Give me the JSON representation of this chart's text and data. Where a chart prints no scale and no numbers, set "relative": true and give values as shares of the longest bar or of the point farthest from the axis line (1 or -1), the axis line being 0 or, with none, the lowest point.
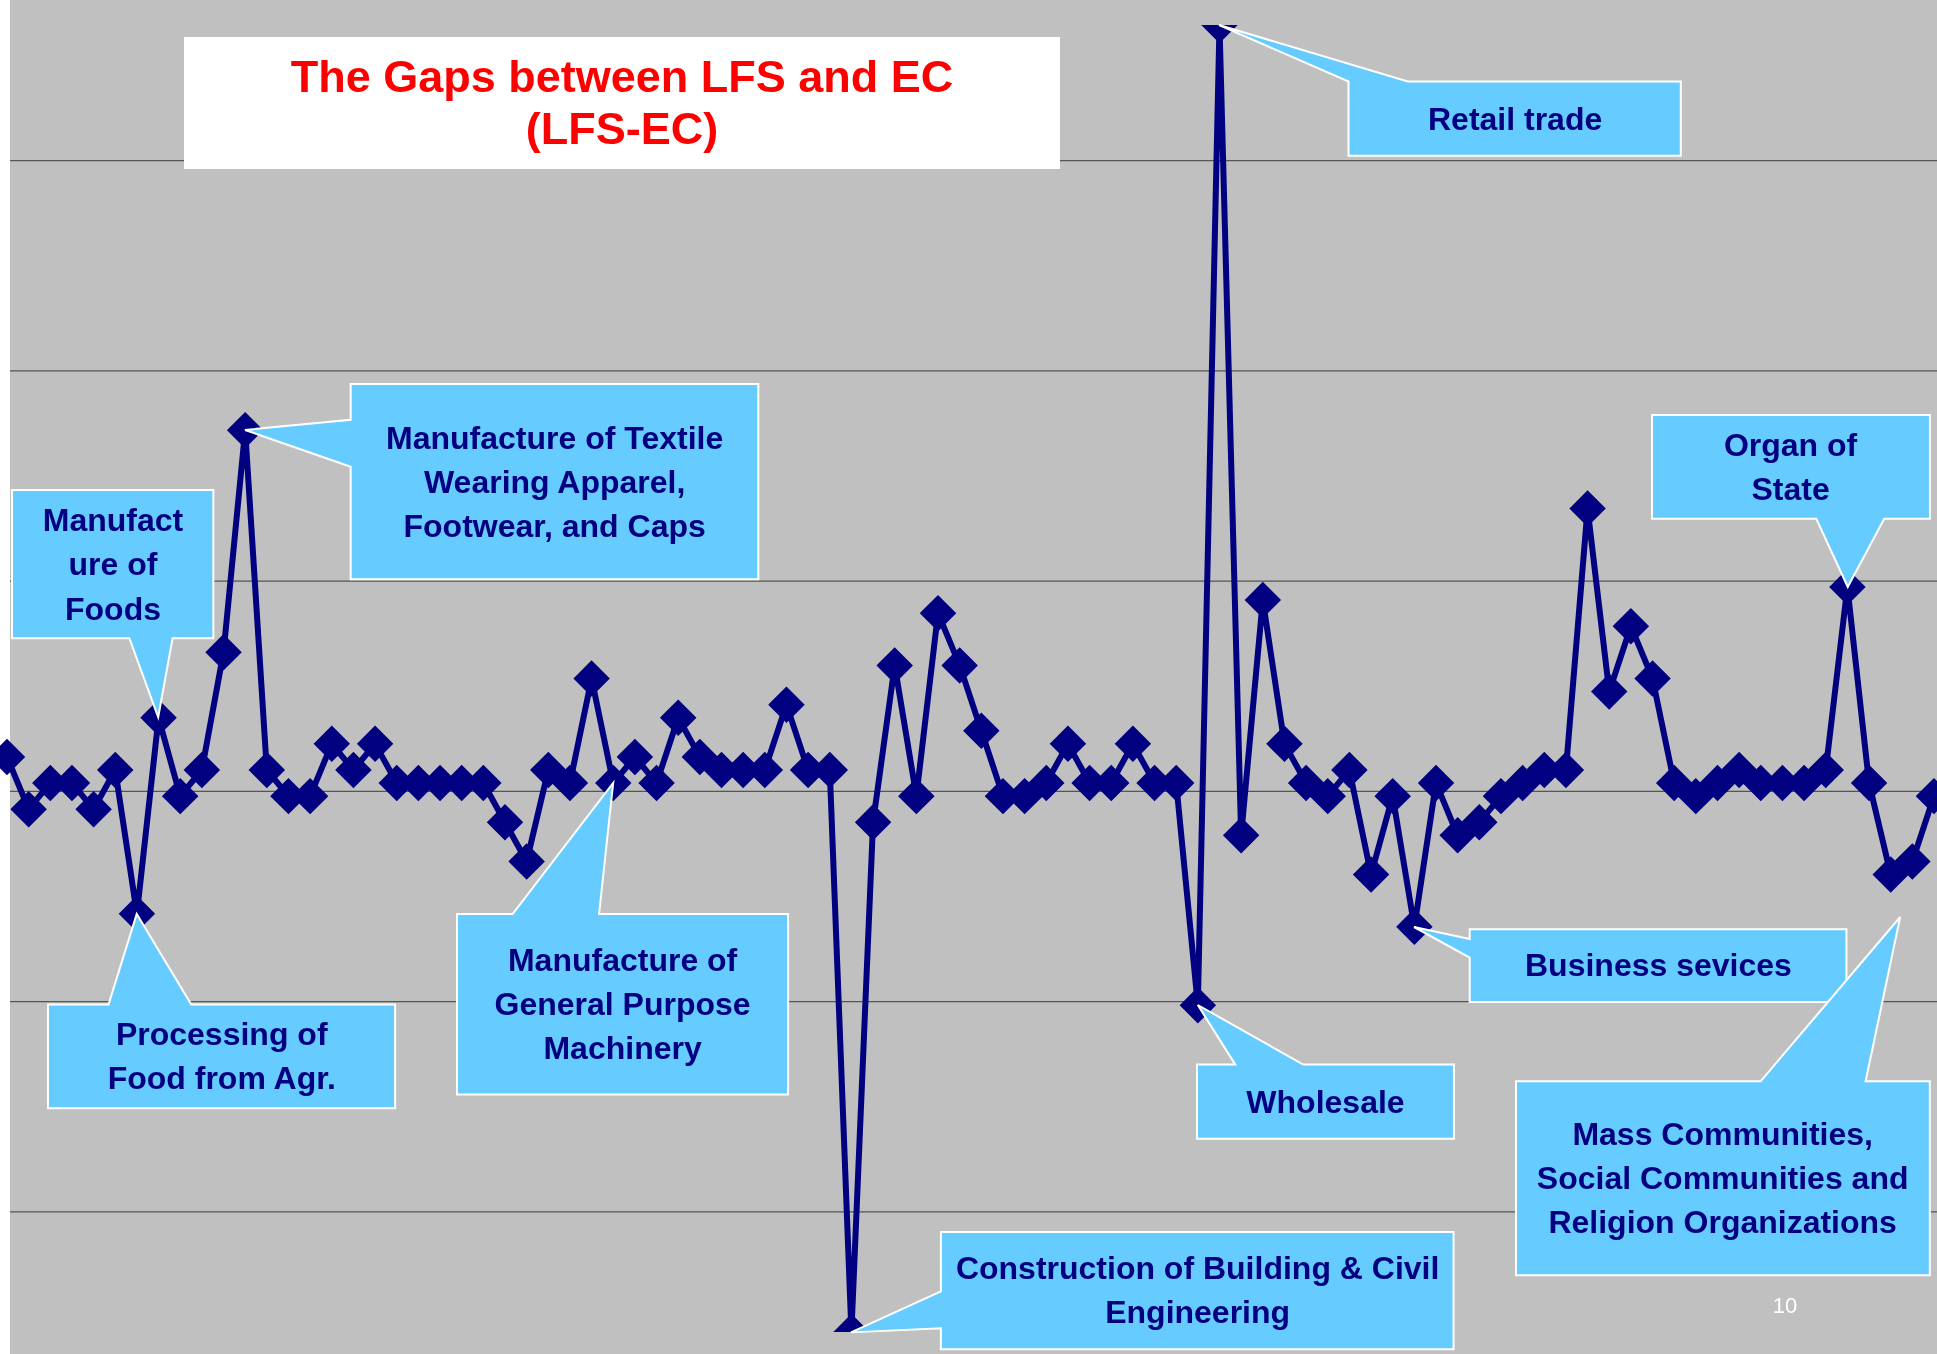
{
  "chart_data": {
    "type": "line",
    "title": "The Gaps between LFS and EC\n(LFS-EC)",
    "relative": true,
    "grid": "y",
    "legend": false,
    "marker": "diamond",
    "line_style": "solid",
    "categories": [
      null,
      null,
      null,
      null,
      null,
      null,
      null,
      null,
      null,
      null,
      null,
      null,
      null,
      null,
      null,
      null,
      null,
      null,
      null,
      null,
      null,
      null,
      null,
      null,
      null,
      null,
      null,
      null,
      null,
      null,
      null,
      null,
      null,
      null,
      null,
      null,
      null,
      null,
      null,
      null,
      null,
      null,
      null,
      null,
      null,
      null,
      null,
      null,
      null,
      null,
      null,
      null,
      null,
      null,
      null,
      null,
      null,
      null,
      null,
      null,
      null,
      null,
      null,
      null,
      null,
      null,
      null,
      null,
      null,
      null,
      null,
      null,
      null,
      null,
      null,
      null,
      null,
      null,
      null,
      null,
      null,
      null,
      null,
      null,
      null,
      null,
      null,
      null,
      null,
      null
    ],
    "series": [
      {
        "color": "#000080",
        "values": [
          0.44,
          0.4,
          0.42,
          0.42,
          0.4,
          0.43,
          0.32,
          0.47,
          0.41,
          0.43,
          0.52,
          0.69,
          0.43,
          0.41,
          0.41,
          0.45,
          0.43,
          0.45,
          0.42,
          0.42,
          0.42,
          0.42,
          0.42,
          0.39,
          0.36,
          0.43,
          0.42,
          0.5,
          0.42,
          0.44,
          0.42,
          0.47,
          0.44,
          0.43,
          0.43,
          0.43,
          0.48,
          0.43,
          0.43,
          0,
          0.39,
          0.51,
          0.41,
          0.55,
          0.51,
          0.46,
          0.41,
          0.41,
          0.42,
          0.45,
          0.42,
          0.42,
          0.45,
          0.42,
          0.42,
          0.25,
          1,
          0.38,
          0.56,
          0.45,
          0.42,
          0.41,
          0.43,
          0.35,
          0.41,
          0.31,
          0.42,
          0.38,
          0.39,
          0.41,
          0.42,
          0.43,
          0.43,
          0.63,
          0.49,
          0.54,
          0.5,
          0.42,
          0.41,
          0.42,
          0.43,
          0.42,
          0.42,
          0.42,
          0.43,
          0.57,
          0.42,
          0.35,
          0.36,
          0.41
        ]
      }
    ],
    "annotations": [
      "Retail trade",
      "Manufacture of Textile Wearing Apparel, Footwear, and Caps",
      "Manufact\nure of\nFoods",
      "Processing of Food from Agr.",
      "Manufacture of General Purpose Machinery",
      "Construction of Building & Civil Engineering",
      "Wholesale",
      "Business sevices",
      "Organ of State",
      "Mass Communities, Social Communities and Religion Organizations",
      "10"
    ]
  }
}
